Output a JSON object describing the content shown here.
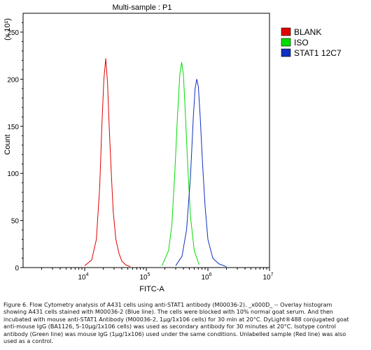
{
  "chart_data": {
    "type": "line",
    "title": "Multi-sample : P1",
    "xlabel": "FITC-A",
    "ylabel": "Count",
    "y_multiplier_label": "(x 10¹)",
    "x_scale": "log",
    "xlim": [
      1000,
      10000000
    ],
    "ylim": [
      0,
      270
    ],
    "x_ticks": [
      {
        "value": 10000,
        "base": "10",
        "exp": "4"
      },
      {
        "value": 100000,
        "base": "10",
        "exp": "5"
      },
      {
        "value": 1000000,
        "base": "10",
        "exp": "6"
      },
      {
        "value": 10000000,
        "base": "10",
        "exp": "7"
      }
    ],
    "y_ticks": [
      0,
      50,
      100,
      150,
      200,
      250
    ],
    "legend_placement": "right",
    "series": [
      {
        "name": "BLANK",
        "color": "#e00000",
        "x": [
          10000,
          13000,
          15500,
          17500,
          19000,
          20500,
          22000,
          23500,
          25000,
          27000,
          29000,
          32000,
          36000,
          40000,
          46000,
          55000
        ],
        "y": [
          2,
          8,
          30,
          85,
          150,
          200,
          222,
          195,
          150,
          100,
          60,
          30,
          15,
          7,
          3,
          1
        ]
      },
      {
        "name": "ISO",
        "color": "#00dd00",
        "x": [
          180000,
          230000,
          260000,
          290000,
          320000,
          350000,
          375000,
          400000,
          430000,
          470000,
          520000,
          600000,
          720000
        ],
        "y": [
          2,
          18,
          45,
          100,
          160,
          205,
          218,
          205,
          165,
          110,
          55,
          18,
          3
        ]
      },
      {
        "name": "STAT1 12C7",
        "color": "#1030c0",
        "x": [
          300000,
          380000,
          450000,
          520000,
          580000,
          620000,
          660000,
          700000,
          750000,
          820000,
          900000,
          1000000,
          1200000,
          1500000,
          2000000
        ],
        "y": [
          2,
          12,
          40,
          95,
          160,
          190,
          200,
          192,
          160,
          110,
          65,
          30,
          10,
          4,
          1
        ]
      }
    ]
  },
  "caption": [
    "Figure 6. Flow Cytometry analysis of A431 cells using anti-STAT1 antibody (M00036-2). _x000D_ -- Overlay histogram",
    "showing A431 cells stained with M00036-2 (Blue line). The cells were blocked with 10% normal goat serum. And then",
    "incubated with mouse anti-STAT1 Antibody (M00036-2, 1μg/1x106 cells) for 30 min at 20°C. DyLight®488 conjugated goat",
    "anti-mouse IgG (BA1126, 5-10μg/1x106 cells) was used as secondary antibody for 30 minutes at 20°C. Isotype control",
    "antibody (Green line) was mouse IgG (1μg/1x106) used under the same conditions. Unlabelled sample (Red line) was also",
    "used as a control."
  ]
}
